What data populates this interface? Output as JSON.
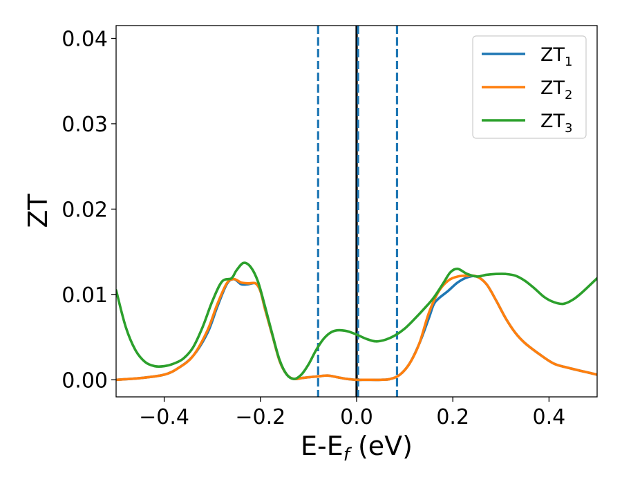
{
  "chart_data": {
    "type": "line",
    "xlabel_main": "E-E",
    "xlabel_sub": "f",
    "xlabel_unit": " (eV)",
    "ylabel": "ZT",
    "xlim": [
      -0.5,
      0.5
    ],
    "ylim": [
      -0.002,
      0.0415
    ],
    "grid": false,
    "legend_placement": "top-right",
    "x_ticks": [
      {
        "value": -0.4,
        "label": "−0.4"
      },
      {
        "value": -0.2,
        "label": "−0.2"
      },
      {
        "value": 0.0,
        "label": "0.0"
      },
      {
        "value": 0.2,
        "label": "0.2"
      },
      {
        "value": 0.4,
        "label": "0.4"
      }
    ],
    "y_ticks": [
      {
        "value": 0.0,
        "label": "0.00"
      },
      {
        "value": 0.01,
        "label": "0.01"
      },
      {
        "value": 0.02,
        "label": "0.02"
      },
      {
        "value": 0.03,
        "label": "0.03"
      },
      {
        "value": 0.04,
        "label": "0.04"
      }
    ],
    "vertical_lines": [
      {
        "x": -0.08,
        "style": "dashed",
        "color": "#1f77b4"
      },
      {
        "x": 0.0,
        "style": "solid",
        "color": "#000000"
      },
      {
        "x": 0.003,
        "style": "dashed",
        "color": "#1f77b4"
      },
      {
        "x": 0.084,
        "style": "dashed",
        "color": "#1f77b4"
      }
    ],
    "series": [
      {
        "name": "ZT",
        "sub": "1",
        "color": "#1f77b4",
        "points": [
          [
            -0.5,
            0.0
          ],
          [
            -0.45,
            0.0002
          ],
          [
            -0.4,
            0.0006
          ],
          [
            -0.37,
            0.0014
          ],
          [
            -0.34,
            0.0028
          ],
          [
            -0.31,
            0.0055
          ],
          [
            -0.29,
            0.0085
          ],
          [
            -0.27,
            0.0112
          ],
          [
            -0.255,
            0.0118
          ],
          [
            -0.24,
            0.0112
          ],
          [
            -0.225,
            0.0112
          ],
          [
            -0.21,
            0.0113
          ],
          [
            -0.2,
            0.0104
          ],
          [
            -0.19,
            0.0082
          ],
          [
            -0.175,
            0.0052
          ],
          [
            -0.16,
            0.0022
          ],
          [
            -0.145,
            0.0006
          ],
          [
            -0.13,
            0.0001
          ],
          [
            -0.115,
            0.0002
          ],
          [
            -0.1,
            0.0003
          ],
          [
            -0.08,
            0.0004
          ],
          [
            -0.06,
            0.0005
          ],
          [
            -0.04,
            0.0003
          ],
          [
            -0.02,
            0.0001
          ],
          [
            0.0,
            0.0
          ],
          [
            0.02,
            0.0
          ],
          [
            0.05,
            0.0
          ],
          [
            0.07,
            0.0001
          ],
          [
            0.09,
            0.0006
          ],
          [
            0.11,
            0.0019
          ],
          [
            0.13,
            0.0042
          ],
          [
            0.15,
            0.0072
          ],
          [
            0.16,
            0.0088
          ],
          [
            0.17,
            0.0095
          ],
          [
            0.19,
            0.0104
          ],
          [
            0.21,
            0.0114
          ],
          [
            0.23,
            0.012
          ],
          [
            0.25,
            0.0121
          ],
          [
            0.27,
            0.0112
          ],
          [
            0.29,
            0.0093
          ],
          [
            0.31,
            0.0072
          ],
          [
            0.33,
            0.0055
          ],
          [
            0.35,
            0.0043
          ],
          [
            0.38,
            0.003
          ],
          [
            0.41,
            0.0019
          ],
          [
            0.44,
            0.0014
          ],
          [
            0.47,
            0.001
          ],
          [
            0.5,
            0.0006
          ]
        ]
      },
      {
        "name": "ZT",
        "sub": "2",
        "color": "#ff7f0e",
        "points": [
          [
            -0.5,
            0.0
          ],
          [
            -0.45,
            0.0002
          ],
          [
            -0.4,
            0.0006
          ],
          [
            -0.37,
            0.0014
          ],
          [
            -0.34,
            0.0028
          ],
          [
            -0.31,
            0.0058
          ],
          [
            -0.29,
            0.0088
          ],
          [
            -0.27,
            0.0113
          ],
          [
            -0.255,
            0.0118
          ],
          [
            -0.24,
            0.0114
          ],
          [
            -0.225,
            0.0113
          ],
          [
            -0.21,
            0.0113
          ],
          [
            -0.2,
            0.0104
          ],
          [
            -0.19,
            0.0082
          ],
          [
            -0.175,
            0.0052
          ],
          [
            -0.16,
            0.0022
          ],
          [
            -0.145,
            0.0006
          ],
          [
            -0.13,
            0.0001
          ],
          [
            -0.115,
            0.0002
          ],
          [
            -0.1,
            0.0003
          ],
          [
            -0.08,
            0.0004
          ],
          [
            -0.06,
            0.0005
          ],
          [
            -0.04,
            0.0003
          ],
          [
            -0.02,
            0.0001
          ],
          [
            0.0,
            0.0
          ],
          [
            0.02,
            0.0
          ],
          [
            0.05,
            0.0
          ],
          [
            0.07,
            0.0001
          ],
          [
            0.09,
            0.0006
          ],
          [
            0.11,
            0.0019
          ],
          [
            0.13,
            0.0042
          ],
          [
            0.15,
            0.0078
          ],
          [
            0.17,
            0.0103
          ],
          [
            0.19,
            0.0116
          ],
          [
            0.21,
            0.0121
          ],
          [
            0.23,
            0.0122
          ],
          [
            0.25,
            0.0121
          ],
          [
            0.27,
            0.0112
          ],
          [
            0.29,
            0.0093
          ],
          [
            0.31,
            0.0072
          ],
          [
            0.33,
            0.0055
          ],
          [
            0.35,
            0.0043
          ],
          [
            0.38,
            0.003
          ],
          [
            0.41,
            0.0019
          ],
          [
            0.44,
            0.0014
          ],
          [
            0.47,
            0.001
          ],
          [
            0.5,
            0.0006
          ]
        ]
      },
      {
        "name": "ZT",
        "sub": "3",
        "color": "#2ca02c",
        "points": [
          [
            -0.5,
            0.0105
          ],
          [
            -0.48,
            0.0062
          ],
          [
            -0.46,
            0.0035
          ],
          [
            -0.44,
            0.0021
          ],
          [
            -0.42,
            0.0016
          ],
          [
            -0.4,
            0.0016
          ],
          [
            -0.38,
            0.0019
          ],
          [
            -0.36,
            0.0025
          ],
          [
            -0.34,
            0.0038
          ],
          [
            -0.32,
            0.0062
          ],
          [
            -0.3,
            0.0092
          ],
          [
            -0.28,
            0.0115
          ],
          [
            -0.26,
            0.0119
          ],
          [
            -0.25,
            0.0128
          ],
          [
            -0.235,
            0.0137
          ],
          [
            -0.22,
            0.0132
          ],
          [
            -0.205,
            0.0115
          ],
          [
            -0.19,
            0.0085
          ],
          [
            -0.175,
            0.0053
          ],
          [
            -0.16,
            0.0023
          ],
          [
            -0.145,
            0.0006
          ],
          [
            -0.13,
            0.0001
          ],
          [
            -0.115,
            0.0006
          ],
          [
            -0.1,
            0.0018
          ],
          [
            -0.085,
            0.0034
          ],
          [
            -0.07,
            0.0047
          ],
          [
            -0.055,
            0.0055
          ],
          [
            -0.04,
            0.0058
          ],
          [
            -0.02,
            0.0057
          ],
          [
            0.0,
            0.0053
          ],
          [
            0.02,
            0.0048
          ],
          [
            0.04,
            0.0045
          ],
          [
            0.06,
            0.0047
          ],
          [
            0.08,
            0.0052
          ],
          [
            0.1,
            0.006
          ],
          [
            0.12,
            0.0071
          ],
          [
            0.14,
            0.0083
          ],
          [
            0.16,
            0.0096
          ],
          [
            0.18,
            0.0113
          ],
          [
            0.195,
            0.0126
          ],
          [
            0.21,
            0.013
          ],
          [
            0.23,
            0.0124
          ],
          [
            0.25,
            0.0121
          ],
          [
            0.27,
            0.0123
          ],
          [
            0.29,
            0.0124
          ],
          [
            0.31,
            0.0124
          ],
          [
            0.33,
            0.0122
          ],
          [
            0.35,
            0.0116
          ],
          [
            0.37,
            0.0107
          ],
          [
            0.39,
            0.0097
          ],
          [
            0.41,
            0.0091
          ],
          [
            0.43,
            0.0089
          ],
          [
            0.45,
            0.0094
          ],
          [
            0.47,
            0.0103
          ],
          [
            0.5,
            0.0119
          ]
        ]
      }
    ]
  }
}
